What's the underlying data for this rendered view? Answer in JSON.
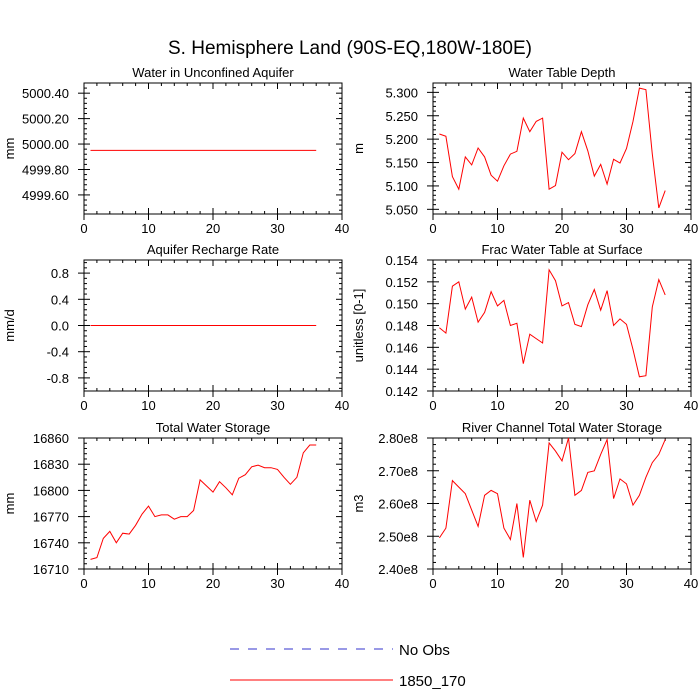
{
  "title": "S. Hemisphere Land (90S-EQ,180W-180E)",
  "legend": {
    "entries": [
      {
        "label": "No Obs",
        "color": "#3333cc",
        "style": "dashed"
      },
      {
        "label": "1850_170",
        "color": "#ff0000",
        "style": "solid"
      }
    ]
  },
  "chart_data": [
    {
      "type": "line",
      "title": "Water in Unconfined Aquifer",
      "xlabel": "",
      "ylabel": "mm",
      "xlim": [
        0,
        40
      ],
      "ylim": [
        4999.45,
        5000.48
      ],
      "xticks": [
        0,
        10,
        20,
        30,
        40
      ],
      "xtick_labels": [
        "0",
        "10",
        "20",
        "30",
        "40"
      ],
      "yticks": [
        4999.6,
        4999.8,
        5000.0,
        5000.2,
        5000.4
      ],
      "ytick_labels": [
        "4999.60",
        "4999.80",
        "5000.00",
        "5000.20",
        "5000.40"
      ],
      "grid": false,
      "series": [
        {
          "name": "1850_170",
          "color": "#ff0000",
          "x": [
            1,
            36
          ],
          "y": [
            4999.95,
            4999.95
          ]
        }
      ]
    },
    {
      "type": "line",
      "title": "Water Table Depth",
      "xlabel": "",
      "ylabel": "m",
      "xlim": [
        0,
        40
      ],
      "ylim": [
        5.04,
        5.32
      ],
      "xticks": [
        0,
        10,
        20,
        30,
        40
      ],
      "xtick_labels": [
        "0",
        "10",
        "20",
        "30",
        "40"
      ],
      "yticks": [
        5.05,
        5.1,
        5.15,
        5.2,
        5.25,
        5.3
      ],
      "ytick_labels": [
        "5.050",
        "5.100",
        "5.150",
        "5.200",
        "5.250",
        "5.300"
      ],
      "grid": false,
      "series": [
        {
          "name": "1850_170",
          "color": "#ff0000",
          "x": [
            1,
            2,
            3,
            4,
            5,
            6,
            7,
            8,
            9,
            10,
            11,
            12,
            13,
            14,
            15,
            16,
            17,
            18,
            19,
            20,
            21,
            22,
            23,
            24,
            25,
            26,
            27,
            28,
            29,
            30,
            31,
            32,
            33,
            34,
            35,
            36
          ],
          "y": [
            5.211,
            5.206,
            5.12,
            5.093,
            5.162,
            5.145,
            5.181,
            5.162,
            5.123,
            5.11,
            5.143,
            5.168,
            5.174,
            5.245,
            5.216,
            5.238,
            5.245,
            5.093,
            5.101,
            5.172,
            5.156,
            5.169,
            5.216,
            5.175,
            5.121,
            5.146,
            5.104,
            5.157,
            5.149,
            5.18,
            5.238,
            5.309,
            5.306,
            5.168,
            5.053,
            5.09
          ]
        }
      ]
    },
    {
      "type": "line",
      "title": "Aquifer Recharge Rate",
      "xlabel": "",
      "ylabel": "mm/d",
      "xlim": [
        0,
        40
      ],
      "ylim": [
        -1.0,
        1.0
      ],
      "xticks": [
        0,
        10,
        20,
        30,
        40
      ],
      "xtick_labels": [
        "0",
        "10",
        "20",
        "30",
        "40"
      ],
      "yticks": [
        -0.8,
        -0.4,
        0.0,
        0.4,
        0.8
      ],
      "ytick_labels": [
        "-0.8",
        "-0.4",
        "0.0",
        "0.4",
        "0.8"
      ],
      "grid": false,
      "series": [
        {
          "name": "1850_170",
          "color": "#ff0000",
          "x": [
            1,
            36
          ],
          "y": [
            0.0,
            0.0
          ]
        }
      ]
    },
    {
      "type": "line",
      "title": "Frac Water Table at Surface",
      "xlabel": "",
      "ylabel": "unitless [0-1]",
      "xlim": [
        0,
        40
      ],
      "ylim": [
        0.142,
        0.154
      ],
      "xticks": [
        0,
        10,
        20,
        30,
        40
      ],
      "xtick_labels": [
        "0",
        "10",
        "20",
        "30",
        "40"
      ],
      "yticks": [
        0.142,
        0.144,
        0.146,
        0.148,
        0.15,
        0.152,
        0.154
      ],
      "ytick_labels": [
        "0.142",
        "0.144",
        "0.146",
        "0.148",
        "0.150",
        "0.152",
        "0.154"
      ],
      "grid": false,
      "series": [
        {
          "name": "1850_170",
          "color": "#ff0000",
          "x": [
            1,
            2,
            3,
            4,
            5,
            6,
            7,
            8,
            9,
            10,
            11,
            12,
            13,
            14,
            15,
            16,
            17,
            18,
            19,
            20,
            21,
            22,
            23,
            24,
            25,
            26,
            27,
            28,
            29,
            30,
            31,
            32,
            33,
            34,
            35,
            36
          ],
          "y": [
            0.1478,
            0.1473,
            0.1516,
            0.152,
            0.1495,
            0.1506,
            0.1483,
            0.1492,
            0.1511,
            0.1498,
            0.1503,
            0.148,
            0.1482,
            0.1445,
            0.1472,
            0.1468,
            0.1464,
            0.1531,
            0.1521,
            0.1498,
            0.1501,
            0.1481,
            0.1479,
            0.1499,
            0.1513,
            0.1494,
            0.1512,
            0.148,
            0.1486,
            0.1481,
            0.1458,
            0.1433,
            0.1434,
            0.1497,
            0.1522,
            0.1508
          ]
        }
      ]
    },
    {
      "type": "line",
      "title": "Total Water Storage",
      "xlabel": "",
      "ylabel": "mm",
      "xlim": [
        0,
        40
      ],
      "ylim": [
        16710,
        16860
      ],
      "xticks": [
        0,
        10,
        20,
        30,
        40
      ],
      "xtick_labels": [
        "0",
        "10",
        "20",
        "30",
        "40"
      ],
      "yticks": [
        16710,
        16740,
        16770,
        16800,
        16830,
        16860
      ],
      "ytick_labels": [
        "16710",
        "16740",
        "16770",
        "16800",
        "16830",
        "16860"
      ],
      "grid": false,
      "series": [
        {
          "name": "1850_170",
          "color": "#ff0000",
          "x": [
            1,
            2,
            3,
            4,
            5,
            6,
            7,
            8,
            9,
            10,
            11,
            12,
            13,
            14,
            15,
            16,
            17,
            18,
            19,
            20,
            21,
            22,
            23,
            24,
            25,
            26,
            27,
            28,
            29,
            30,
            31,
            32,
            33,
            34,
            35,
            36
          ],
          "y": [
            16721,
            16723,
            16745,
            16753,
            16740,
            16751,
            16750,
            16760,
            16773,
            16782,
            16770,
            16772,
            16772,
            16767,
            16770,
            16770,
            16777,
            16812,
            16805,
            16798,
            16810,
            16803,
            16795,
            16814,
            16818,
            16827,
            16829,
            16826,
            16826,
            16824,
            16815,
            16807,
            16815,
            16843,
            16852,
            16852
          ]
        }
      ]
    },
    {
      "type": "line",
      "title": "River Channel Total Water Storage",
      "xlabel": "",
      "ylabel": "m3",
      "xlim": [
        0,
        40
      ],
      "ylim": [
        240000000.0,
        280000000.0
      ],
      "xticks": [
        0,
        10,
        20,
        30,
        40
      ],
      "xtick_labels": [
        "0",
        "10",
        "20",
        "30",
        "40"
      ],
      "yticks": [
        240000000.0,
        250000000.0,
        260000000.0,
        270000000.0,
        280000000.0
      ],
      "ytick_labels": [
        "2.40e8",
        "2.50e8",
        "2.60e8",
        "2.70e8",
        "2.80e8"
      ],
      "grid": false,
      "series": [
        {
          "name": "1850_170",
          "color": "#ff0000",
          "x": [
            1,
            2,
            3,
            4,
            5,
            6,
            7,
            8,
            9,
            10,
            11,
            12,
            13,
            14,
            15,
            16,
            17,
            18,
            19,
            20,
            21,
            22,
            23,
            24,
            25,
            26,
            27,
            28,
            29,
            30,
            31,
            32,
            33,
            34,
            35,
            36
          ],
          "y": [
            249500000,
            252500000,
            267000000,
            265000000,
            263000000,
            258000000,
            253000000,
            262500000,
            264000000,
            263000000,
            252500000,
            249000000,
            260000000,
            243500000,
            261000000,
            254500000,
            259500000,
            278500000,
            276000000,
            273000000,
            280000000,
            262500000,
            264000000,
            269500000,
            270000000,
            275000000,
            279500000,
            261500000,
            267500000,
            266000000,
            259500000,
            262500000,
            268000000,
            272500000,
            275000000,
            279500000
          ]
        }
      ]
    }
  ]
}
